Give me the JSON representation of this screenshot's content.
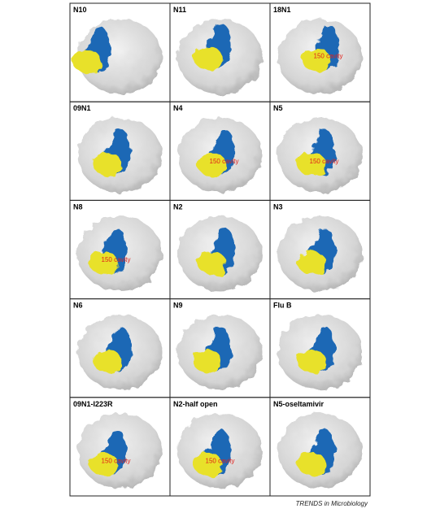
{
  "panels": [
    {
      "label": "N10"
    },
    {
      "label": "N11"
    },
    {
      "label": "18N1",
      "annotation": "150 cavity"
    },
    {
      "label": "09N1"
    },
    {
      "label": "N4",
      "annotation": "150 cavity"
    },
    {
      "label": "N5",
      "annotation": "150 cavity"
    },
    {
      "label": "N8",
      "annotation": "150 cavity"
    },
    {
      "label": "N2"
    },
    {
      "label": "N3"
    },
    {
      "label": "N6"
    },
    {
      "label": "N9"
    },
    {
      "label": "Flu B"
    },
    {
      "label": "09N1-I223R",
      "annotation": "150 cavity"
    },
    {
      "label": "N2-half open",
      "annotation": "150 cavity"
    },
    {
      "label": "N5-oseltamivir"
    }
  ],
  "footer": "TRENDS in Microbiology"
}
